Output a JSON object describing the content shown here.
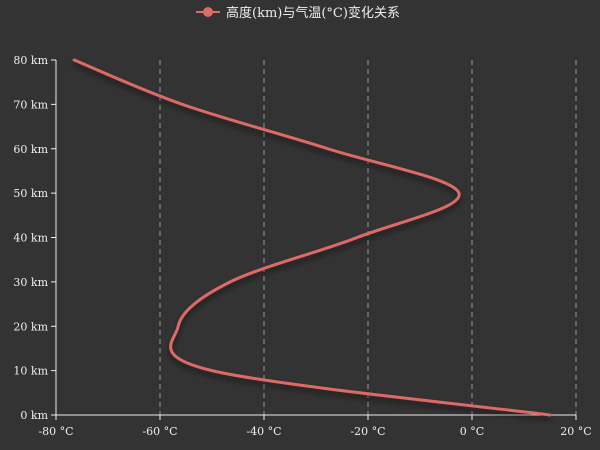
{
  "colors": {
    "background": "#333333",
    "series": "#dd6b66",
    "axis": "#eeeeee",
    "grid": "#aaaaaa",
    "text": "#eeeeee"
  },
  "chart_data": {
    "type": "line",
    "title": "",
    "legend": {
      "position": "top-center",
      "entries": [
        "高度(km)与气温(°C)变化关系"
      ]
    },
    "xlabel": "",
    "ylabel": "",
    "xlim": [
      -80,
      20
    ],
    "ylim": [
      0,
      80
    ],
    "x_ticks": [
      -80,
      -60,
      -40,
      -20,
      0,
      20
    ],
    "x_tick_labels": [
      "-80 °C",
      "-60 °C",
      "-40 °C",
      "-20 °C",
      "0 °C",
      "20 °C"
    ],
    "y_ticks": [
      0,
      10,
      20,
      30,
      40,
      50,
      60,
      70,
      80
    ],
    "y_tick_labels": [
      "0 km",
      "10 km",
      "20 km",
      "30 km",
      "40 km",
      "50 km",
      "60 km",
      "70 km",
      "80 km"
    ],
    "x_grid": "dashed vertical",
    "y_grid": false,
    "smooth": true,
    "series": [
      {
        "name": "高度(km)与气温(°C)变化关系",
        "points": [
          {
            "x": 15,
            "y": 0
          },
          {
            "x": -50,
            "y": 10
          },
          {
            "x": -56.5,
            "y": 20
          },
          {
            "x": -46.5,
            "y": 30
          },
          {
            "x": -22.1,
            "y": 40
          },
          {
            "x": -2.5,
            "y": 50
          },
          {
            "x": -27.7,
            "y": 60
          },
          {
            "x": -55.7,
            "y": 70
          },
          {
            "x": -76.5,
            "y": 80
          }
        ]
      }
    ]
  }
}
